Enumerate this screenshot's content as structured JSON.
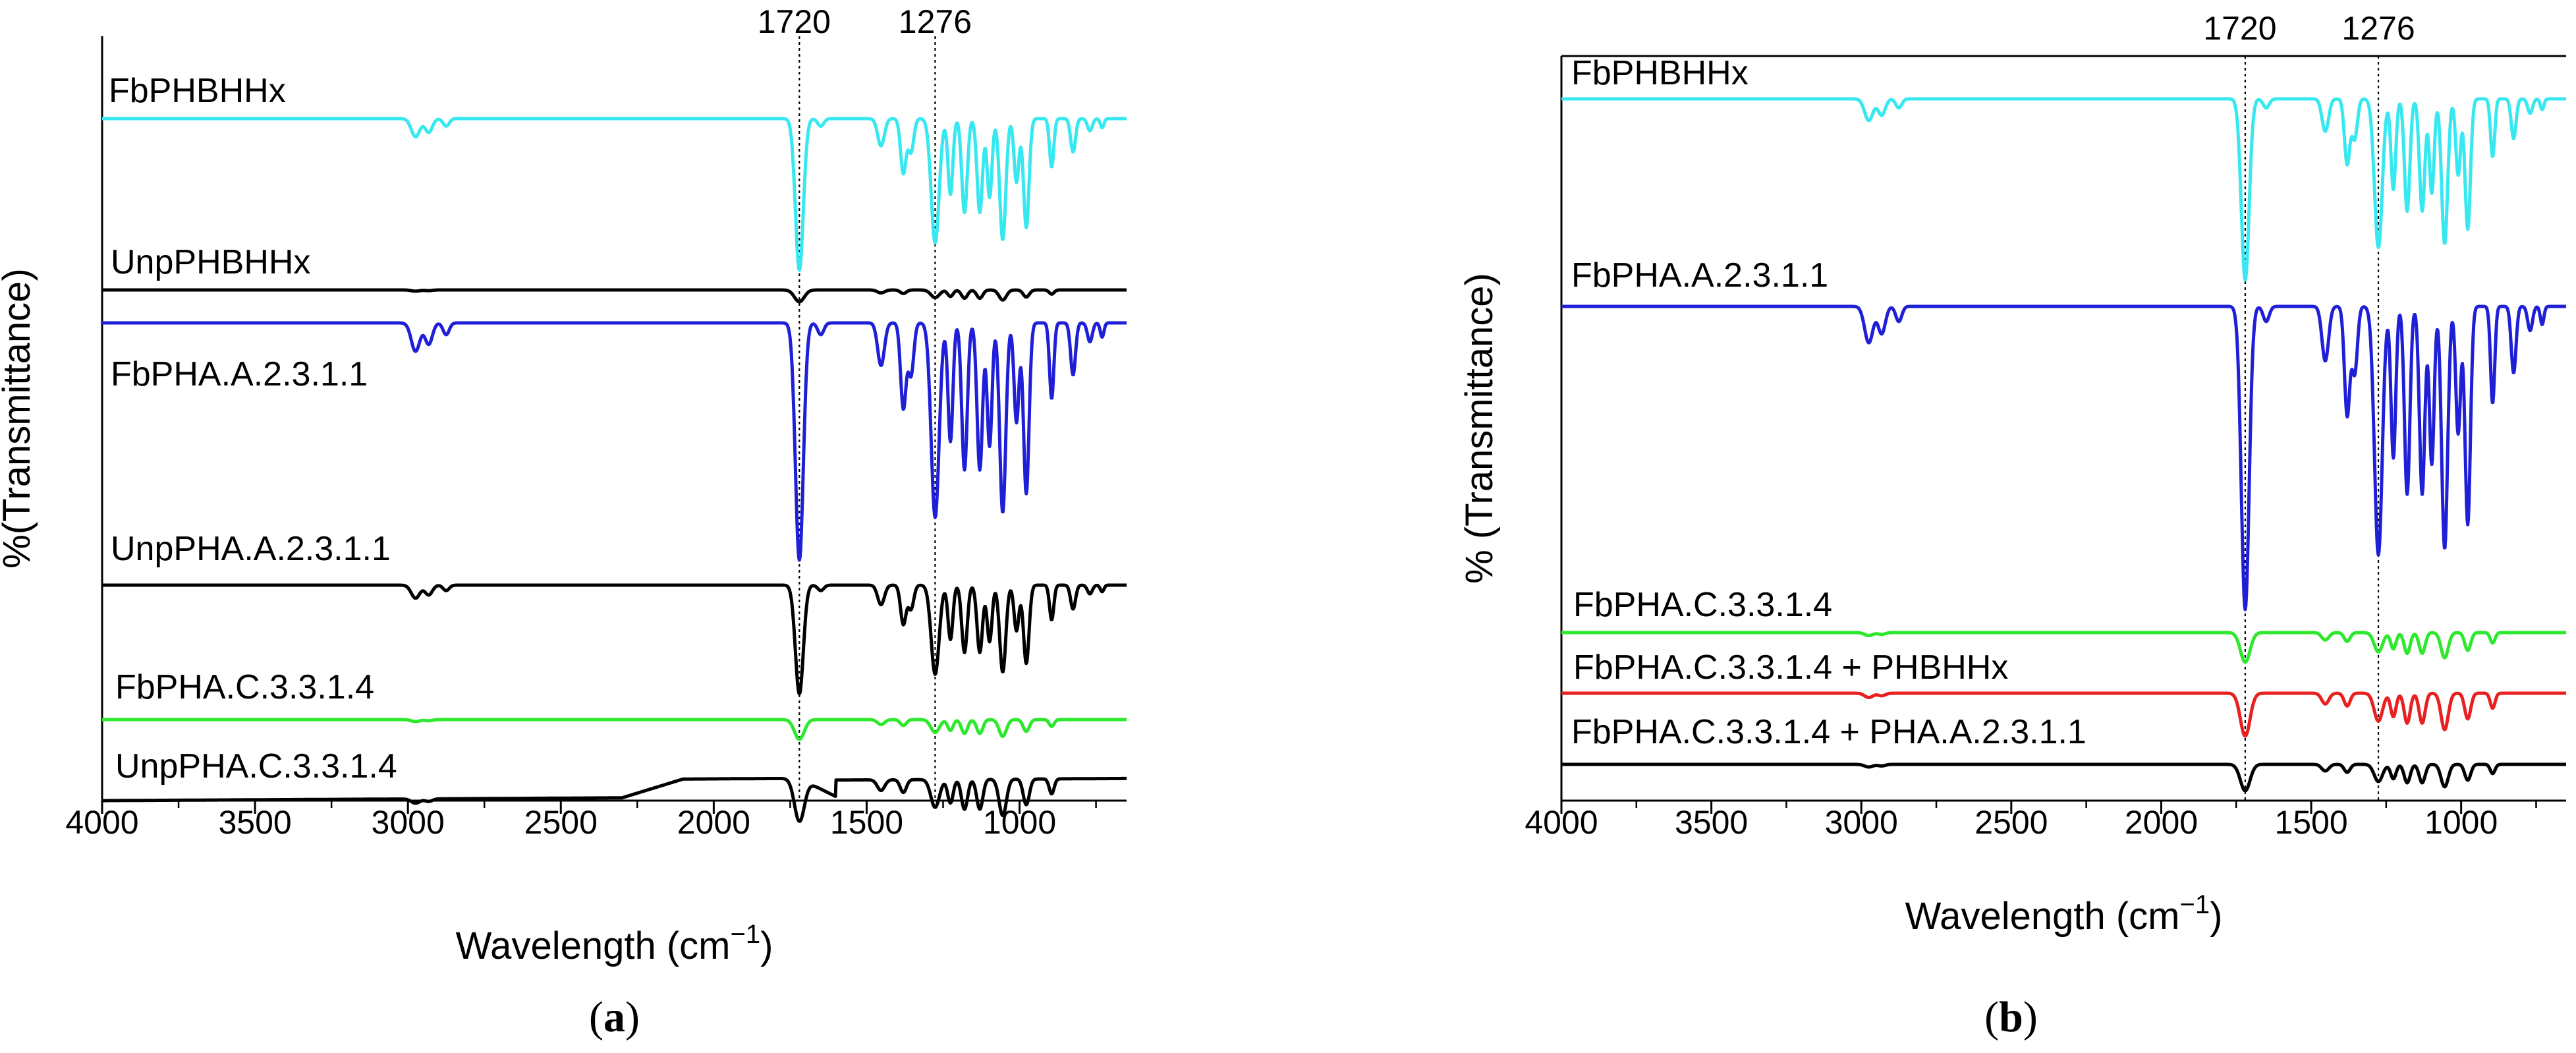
{
  "chart_data": [
    {
      "type": "line",
      "panel_id": "a",
      "panel_label_open": "(",
      "panel_label_letter": "a",
      "panel_label_close": ")",
      "xlabel_main": "Wavelength (cm",
      "xlabel_sup": "−1",
      "xlabel_close": ")",
      "ylabel": "%(Transmittance)",
      "xlim": [
        4000,
        650
      ],
      "xticks": [
        4000,
        3500,
        3000,
        2500,
        2000,
        1500,
        1000
      ],
      "reference_lines": [
        1720,
        1276
      ],
      "series": [
        {
          "name": "FbPHBHHx",
          "color": "#38e8f0"
        },
        {
          "name": "UnpPHBHHx",
          "color": "#000000"
        },
        {
          "name": "FbPHA.A.2.3.1.1",
          "color": "#1f1fd8"
        },
        {
          "name": "UnpPHA.A.2.3.1.1",
          "color": "#000000"
        },
        {
          "name": "FbPHA.C.3.3.1.4",
          "color": "#2ee82e"
        },
        {
          "name": "UnpPHA.C.3.3.1.4",
          "color": "#000000"
        }
      ]
    },
    {
      "type": "line",
      "panel_id": "b",
      "panel_label_open": "(",
      "panel_label_letter": "b",
      "panel_label_close": ")",
      "xlabel_main": "Wavelength (cm",
      "xlabel_sup": "−1",
      "xlabel_close": ")",
      "ylabel": "% (Transmittance)",
      "xlim": [
        4000,
        650
      ],
      "xticks": [
        4000,
        3500,
        3000,
        2500,
        2000,
        1500,
        1000
      ],
      "reference_lines": [
        1720,
        1276
      ],
      "series": [
        {
          "name": "FbPHBHHx",
          "color": "#38e8f0"
        },
        {
          "name": "FbPHA.A.2.3.1.1",
          "color": "#1f1fd8"
        },
        {
          "name": "FbPHA.C.3.3.1.4",
          "color": "#2ee82e"
        },
        {
          "name": "FbPHA.C.3.3.1.4 + PHBHHx",
          "color": "#e8201f"
        },
        {
          "name": "FbPHA.C.3.3.1.4 + PHA.A.2.3.1.1",
          "color": "#000000"
        }
      ]
    }
  ]
}
